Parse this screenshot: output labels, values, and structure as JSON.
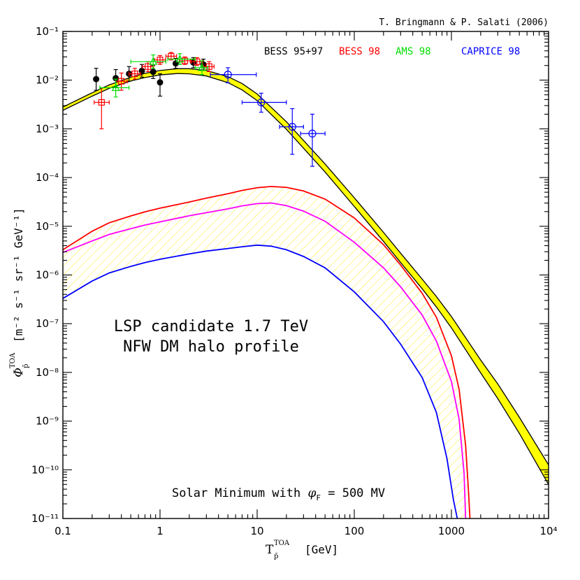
{
  "chart_data": {
    "type": "line",
    "credit": "T. Bringmann & P. Salati (2006)",
    "xlabel": "T",
    "xlabel_sup": "TOA",
    "xlabel_sub": "p̄",
    "xlabel_unit": "[GeV]",
    "ylabel": "Φ",
    "ylabel_sup": "TOA",
    "ylabel_sub": "p̄",
    "ylabel_unit": "[m⁻² s⁻¹ sr⁻¹ GeV⁻¹]",
    "xscale": "log",
    "yscale": "log",
    "xlim": [
      0.1,
      10000
    ],
    "ylim": [
      1e-11,
      0.1
    ],
    "x_tick_labels": [
      "0.1",
      "1",
      "10",
      "100",
      "1000",
      "10⁴"
    ],
    "y_tick_labels": [
      "10⁻¹¹",
      "10⁻¹⁰",
      "10⁻⁹",
      "10⁻⁸",
      "10⁻⁷",
      "10⁻⁶",
      "10⁻⁵",
      "10⁻⁴",
      "10⁻³",
      "10⁻²",
      "10⁻¹"
    ],
    "legend": {
      "placement": "top-right",
      "entries": [
        {
          "label": "BESS 95+97",
          "color": "#000000"
        },
        {
          "label": "BESS 98",
          "color": "#ff0000"
        },
        {
          "label": "AMS 98",
          "color": "#00dd00"
        },
        {
          "label": "CAPRICE 98",
          "color": "#0000ff"
        }
      ]
    },
    "annotations": {
      "candidate_line1": "LSP candidate 1.7 TeV",
      "candidate_line2": "NFW DM halo profile",
      "solar_prefix": "Solar Minimum with ",
      "solar_phi": "φ",
      "solar_sub": "F",
      "solar_suffix": " = 500 MV"
    },
    "background_band": {
      "name": "",
      "color": "#ffff00",
      "x": [
        0.1,
        0.2,
        0.3,
        0.5,
        0.7,
        1,
        1.5,
        2,
        3,
        5,
        7,
        10,
        20,
        30,
        50,
        100,
        200,
        300,
        500,
        700,
        1000,
        2000,
        3000,
        5000,
        10000
      ],
      "upper": [
        0.0028,
        0.0055,
        0.008,
        0.0115,
        0.0138,
        0.0158,
        0.0172,
        0.0172,
        0.0158,
        0.0118,
        0.0085,
        0.0052,
        0.0014,
        0.00058,
        0.00019,
        3.85e-05,
        7.5e-06,
        2.8e-06,
        8.2e-07,
        3.6e-07,
        1.4e-07,
        1.8e-08,
        5.8e-09,
        1.2e-09,
        1.26e-10
      ],
      "lower": [
        0.0024,
        0.0047,
        0.0068,
        0.0096,
        0.0113,
        0.0128,
        0.0137,
        0.0135,
        0.0122,
        0.0089,
        0.0063,
        0.0038,
        0.00098,
        0.0004,
        0.00013,
        2.55e-05,
        4.9e-06,
        1.8e-06,
        5.2e-07,
        2.2e-07,
        8.2e-08,
        9.8e-09,
        2.9e-09,
        5.6e-10,
        5e-11
      ]
    },
    "series": [
      {
        "name": "",
        "color": "#ff0000",
        "x": [
          0.1,
          0.2,
          0.3,
          0.5,
          0.7,
          1,
          2,
          3,
          5,
          7,
          10,
          14,
          20,
          30,
          50,
          100,
          200,
          300,
          500,
          700,
          1000,
          1200,
          1400,
          1500,
          1550
        ],
        "y": [
          3.3e-06,
          7.9e-06,
          1.18e-05,
          1.63e-05,
          1.98e-05,
          2.35e-05,
          3.15e-05,
          3.78e-05,
          4.65e-05,
          5.45e-05,
          6.2e-05,
          6.55e-05,
          6.3e-05,
          5.3e-05,
          3.62e-05,
          1.48e-05,
          4.2e-06,
          1.6e-06,
          4.2e-07,
          1.35e-07,
          2.2e-08,
          4.5e-09,
          3.2e-10,
          3.5e-11,
          1e-11
        ]
      },
      {
        "name": "",
        "color": "#ff00ff",
        "x": [
          0.1,
          0.2,
          0.3,
          0.5,
          0.7,
          1,
          2,
          3,
          5,
          7,
          10,
          14,
          20,
          30,
          50,
          100,
          200,
          300,
          500,
          700,
          1000,
          1200,
          1350,
          1400
        ],
        "y": [
          2.9e-06,
          5e-06,
          6.8e-06,
          8.9e-06,
          1.06e-05,
          1.23e-05,
          1.64e-05,
          1.9e-05,
          2.28e-05,
          2.62e-05,
          2.92e-05,
          3e-05,
          2.65e-05,
          2.05e-05,
          1.27e-05,
          4.7e-06,
          1.4e-06,
          5.7e-07,
          1.5e-07,
          4.4e-08,
          6.5e-09,
          1.1e-09,
          8.5e-11,
          1e-11
        ]
      },
      {
        "name": "",
        "color": "#0000ff",
        "x": [
          0.1,
          0.2,
          0.3,
          0.5,
          0.7,
          1,
          2,
          3,
          5,
          7,
          10,
          14,
          20,
          30,
          50,
          100,
          200,
          300,
          500,
          700,
          900,
          1050,
          1150
        ],
        "y": [
          3.3e-07,
          7.5e-07,
          1.1e-06,
          1.5e-06,
          1.8e-06,
          2.1e-06,
          2.7e-06,
          3.1e-06,
          3.5e-06,
          3.8e-06,
          4.1e-06,
          3.9e-06,
          3.3e-06,
          2.4e-06,
          1.4e-06,
          4.5e-07,
          1.1e-07,
          3.8e-08,
          7.8e-09,
          1.5e-09,
          1.7e-10,
          2.4e-11,
          1e-11
        ]
      }
    ],
    "signal_band": {
      "upper_series": 0,
      "lower_series": 2,
      "hatch_color": "#ffee55"
    },
    "data_points": [
      {
        "dataset": "BESS 95+97",
        "color": "#000000",
        "marker": "filled-circle",
        "points": [
          {
            "x": 0.22,
            "y": 0.0105,
            "ylo": 0.0062,
            "yhi": 0.0175
          },
          {
            "x": 0.35,
            "y": 0.011,
            "ylo": 0.0072,
            "yhi": 0.0165
          },
          {
            "x": 0.48,
            "y": 0.0135,
            "ylo": 0.0095,
            "yhi": 0.019
          },
          {
            "x": 0.65,
            "y": 0.0155,
            "ylo": 0.0115,
            "yhi": 0.021
          },
          {
            "x": 0.85,
            "y": 0.0148,
            "ylo": 0.0108,
            "yhi": 0.02
          },
          {
            "x": 1.0,
            "y": 0.009,
            "ylo": 0.0047,
            "yhi": 0.0135
          },
          {
            "x": 1.45,
            "y": 0.022,
            "ylo": 0.0175,
            "yhi": 0.028
          },
          {
            "x": 2.2,
            "y": 0.023,
            "ylo": 0.018,
            "yhi": 0.029
          },
          {
            "x": 2.8,
            "y": 0.021,
            "ylo": 0.016,
            "yhi": 0.027
          }
        ]
      },
      {
        "dataset": "BESS 98",
        "color": "#ff0000",
        "marker": "open-square",
        "points": [
          {
            "x": 0.25,
            "y": 0.0035,
            "ylo": 0.001,
            "yhi": 0.007,
            "xlo": 0.21,
            "xhi": 0.3
          },
          {
            "x": 0.4,
            "y": 0.0095,
            "ylo": 0.0062,
            "yhi": 0.014,
            "xlo": 0.35,
            "xhi": 0.46
          },
          {
            "x": 0.55,
            "y": 0.0135,
            "ylo": 0.0105,
            "yhi": 0.0175,
            "xlo": 0.48,
            "xhi": 0.63
          },
          {
            "x": 0.75,
            "y": 0.019,
            "ylo": 0.015,
            "yhi": 0.024,
            "xlo": 0.66,
            "xhi": 0.86
          },
          {
            "x": 1.0,
            "y": 0.026,
            "ylo": 0.021,
            "yhi": 0.032,
            "xlo": 0.88,
            "xhi": 1.14
          },
          {
            "x": 1.3,
            "y": 0.031,
            "ylo": 0.026,
            "yhi": 0.037,
            "xlo": 1.15,
            "xhi": 1.48
          },
          {
            "x": 1.8,
            "y": 0.025,
            "ylo": 0.021,
            "yhi": 0.03,
            "xlo": 1.58,
            "xhi": 2.05
          },
          {
            "x": 2.4,
            "y": 0.024,
            "ylo": 0.02,
            "yhi": 0.029,
            "xlo": 2.1,
            "xhi": 2.75
          },
          {
            "x": 3.2,
            "y": 0.019,
            "ylo": 0.015,
            "yhi": 0.024,
            "xlo": 2.8,
            "xhi": 3.6
          }
        ]
      },
      {
        "dataset": "AMS 98",
        "color": "#00dd00",
        "marker": "open-triangle",
        "points": [
          {
            "x": 0.35,
            "y": 0.007,
            "ylo": 0.0045,
            "yhi": 0.0105,
            "xlo": 0.24,
            "xhi": 0.48
          },
          {
            "x": 0.85,
            "y": 0.024,
            "ylo": 0.0175,
            "yhi": 0.033,
            "xlo": 0.5,
            "xhi": 1.15
          },
          {
            "x": 1.6,
            "y": 0.027,
            "ylo": 0.021,
            "yhi": 0.035,
            "xlo": 1.2,
            "xhi": 2.3
          },
          {
            "x": 2.7,
            "y": 0.018,
            "ylo": 0.013,
            "yhi": 0.025,
            "xlo": 2.3,
            "xhi": 3.1
          }
        ]
      },
      {
        "dataset": "CAPRICE 98",
        "color": "#0000ff",
        "marker": "open-circle",
        "points": [
          {
            "x": 5.0,
            "y": 0.013,
            "ylo": 0.0088,
            "yhi": 0.018,
            "xlo": 3.3,
            "xhi": 9.8
          },
          {
            "x": 11.0,
            "y": 0.0035,
            "ylo": 0.0022,
            "yhi": 0.0054,
            "xlo": 7.0,
            "xhi": 20.0
          },
          {
            "x": 23.0,
            "y": 0.0011,
            "ylo": 0.0003,
            "yhi": 0.0026,
            "xlo": 17.0,
            "xhi": 30.0
          },
          {
            "x": 37.0,
            "y": 0.0008,
            "ylo": 0.00017,
            "yhi": 0.002,
            "xlo": 28.0,
            "xhi": 50.0
          }
        ]
      }
    ]
  }
}
